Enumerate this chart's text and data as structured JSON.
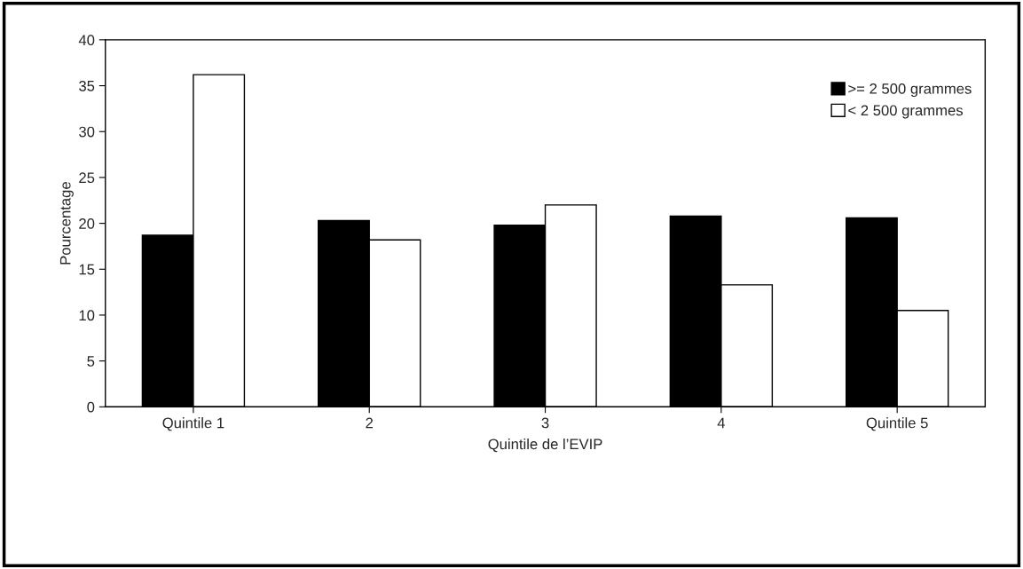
{
  "chart_data": {
    "type": "bar",
    "xlabel": "Quintile de l’EVIP",
    "ylabel": "Pourcentage",
    "categories": [
      "Quintile 1",
      "2",
      "3",
      "4",
      "Quintile 5"
    ],
    "series": [
      {
        "name": ">= 2 500 grammes",
        "color": "#000000",
        "values": [
          18.7,
          20.3,
          19.8,
          20.8,
          20.6
        ]
      },
      {
        "name": "< 2 500 grammes",
        "color": "#ffffff",
        "values": [
          36.2,
          18.2,
          22.0,
          13.3,
          10.5
        ]
      }
    ],
    "ylim": [
      0,
      40
    ],
    "yticks": [
      0,
      5,
      10,
      15,
      20,
      25,
      30,
      35,
      40
    ],
    "grid": false,
    "legend": "top right"
  }
}
